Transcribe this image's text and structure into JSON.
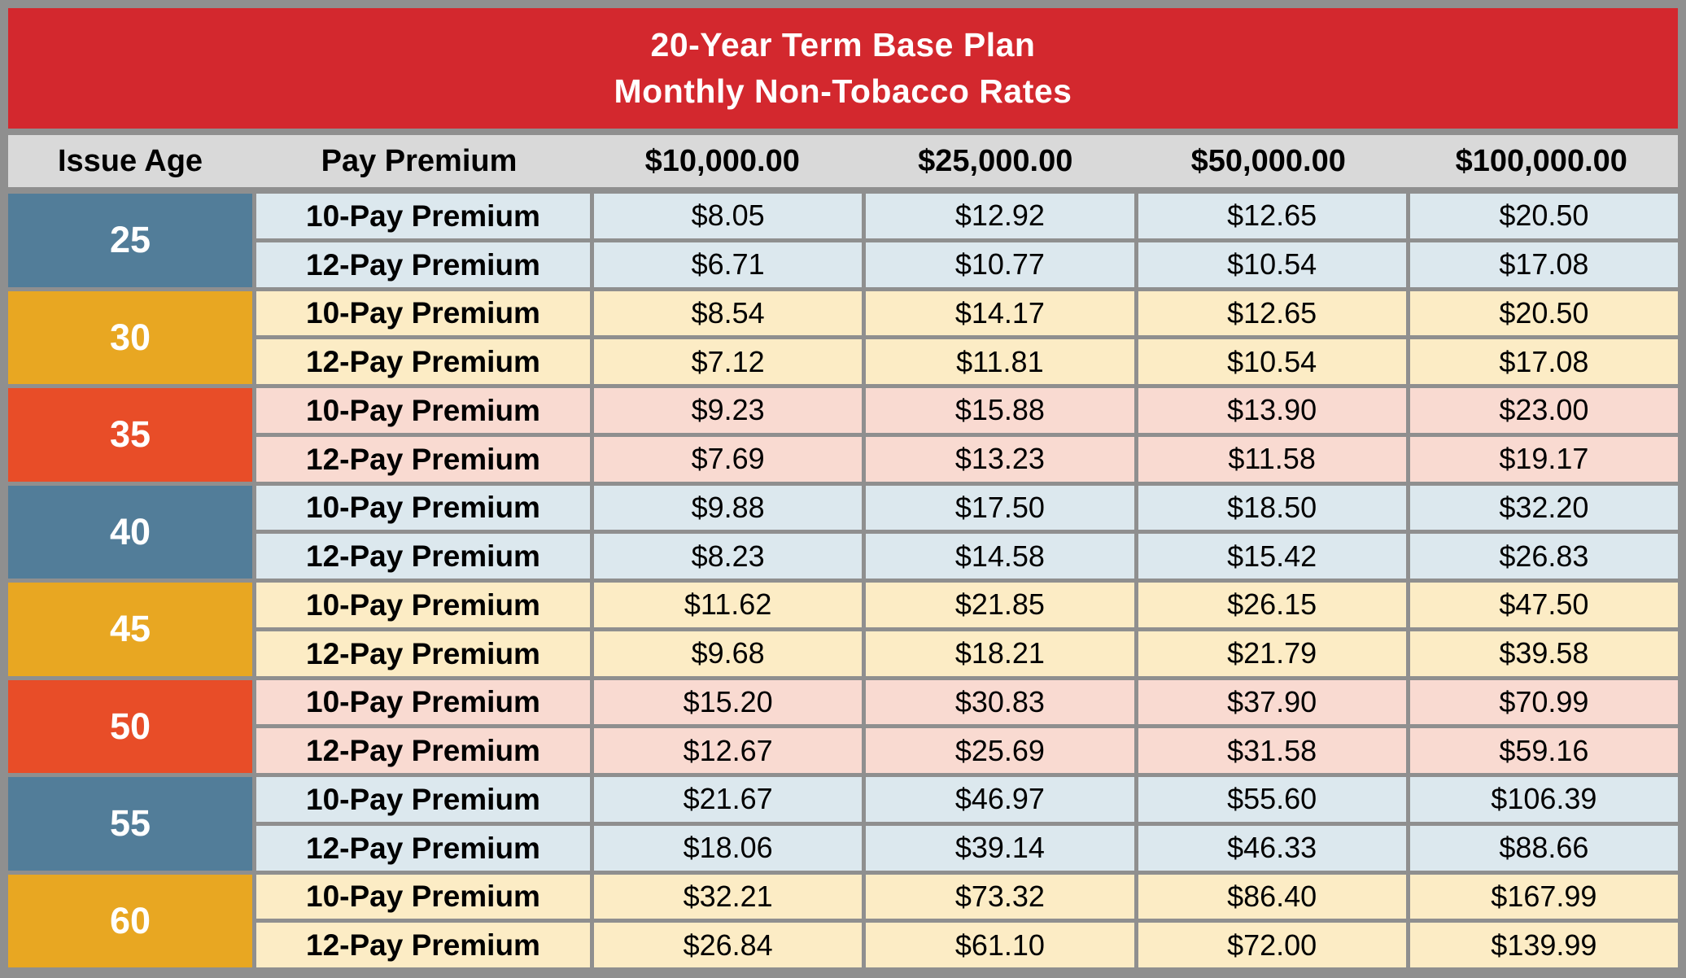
{
  "banner": {
    "title_line1": "20-Year Term Base Plan",
    "title_line2": "Monthly Non-Tobacco Rates"
  },
  "header": {
    "columns": [
      "Issue Age",
      "Pay Premium",
      "$10,000.00",
      "$25,000.00",
      "$50,000.00",
      "$100,000.00"
    ]
  },
  "table": {
    "age_groups": [
      {
        "age": "25",
        "theme": "blue",
        "rows": [
          {
            "label": "10-Pay Premium",
            "values": [
              "$8.05",
              "$12.92",
              "$12.65",
              "$20.50"
            ]
          },
          {
            "label": "12-Pay Premium",
            "values": [
              "$6.71",
              "$10.77",
              "$10.54",
              "$17.08"
            ]
          }
        ]
      },
      {
        "age": "30",
        "theme": "amber",
        "rows": [
          {
            "label": "10-Pay Premium",
            "values": [
              "$8.54",
              "$14.17",
              "$12.65",
              "$20.50"
            ]
          },
          {
            "label": "12-Pay Premium",
            "values": [
              "$7.12",
              "$11.81",
              "$10.54",
              "$17.08"
            ]
          }
        ]
      },
      {
        "age": "35",
        "theme": "vermilion",
        "rows": [
          {
            "label": "10-Pay Premium",
            "values": [
              "$9.23",
              "$15.88",
              "$13.90",
              "$23.00"
            ]
          },
          {
            "label": "12-Pay Premium",
            "values": [
              "$7.69",
              "$13.23",
              "$11.58",
              "$19.17"
            ]
          }
        ]
      },
      {
        "age": "40",
        "theme": "blue",
        "rows": [
          {
            "label": "10-Pay Premium",
            "values": [
              "$9.88",
              "$17.50",
              "$18.50",
              "$32.20"
            ]
          },
          {
            "label": "12-Pay Premium",
            "values": [
              "$8.23",
              "$14.58",
              "$15.42",
              "$26.83"
            ]
          }
        ]
      },
      {
        "age": "45",
        "theme": "amber",
        "rows": [
          {
            "label": "10-Pay Premium",
            "values": [
              "$11.62",
              "$21.85",
              "$26.15",
              "$47.50"
            ]
          },
          {
            "label": "12-Pay Premium",
            "values": [
              "$9.68",
              "$18.21",
              "$21.79",
              "$39.58"
            ]
          }
        ]
      },
      {
        "age": "50",
        "theme": "vermilion",
        "rows": [
          {
            "label": "10-Pay Premium",
            "values": [
              "$15.20",
              "$30.83",
              "$37.90",
              "$70.99"
            ]
          },
          {
            "label": "12-Pay Premium",
            "values": [
              "$12.67",
              "$25.69",
              "$31.58",
              "$59.16"
            ]
          }
        ]
      },
      {
        "age": "55",
        "theme": "blue",
        "rows": [
          {
            "label": "10-Pay Premium",
            "values": [
              "$21.67",
              "$46.97",
              "$55.60",
              "$106.39"
            ]
          },
          {
            "label": "12-Pay Premium",
            "values": [
              "$18.06",
              "$39.14",
              "$46.33",
              "$88.66"
            ]
          }
        ]
      },
      {
        "age": "60",
        "theme": "amber",
        "rows": [
          {
            "label": "10-Pay Premium",
            "values": [
              "$32.21",
              "$73.32",
              "$86.40",
              "$167.99"
            ]
          },
          {
            "label": "12-Pay Premium",
            "values": [
              "$26.84",
              "$61.10",
              "$72.00",
              "$139.99"
            ]
          }
        ]
      }
    ]
  },
  "colors": {
    "banner_red": "#d3282e",
    "banner_text": "#ffffff",
    "header_gray": "#d9d9d9",
    "age_blue": "#527d99",
    "age_amber": "#e8a722",
    "age_vermilion": "#e84d28",
    "row_tint_blue": "#dce8ee",
    "row_tint_amber": "#fcecc5",
    "row_tint_vermilion": "#f9dad1",
    "gridline_gray": "#8f8f8f"
  }
}
